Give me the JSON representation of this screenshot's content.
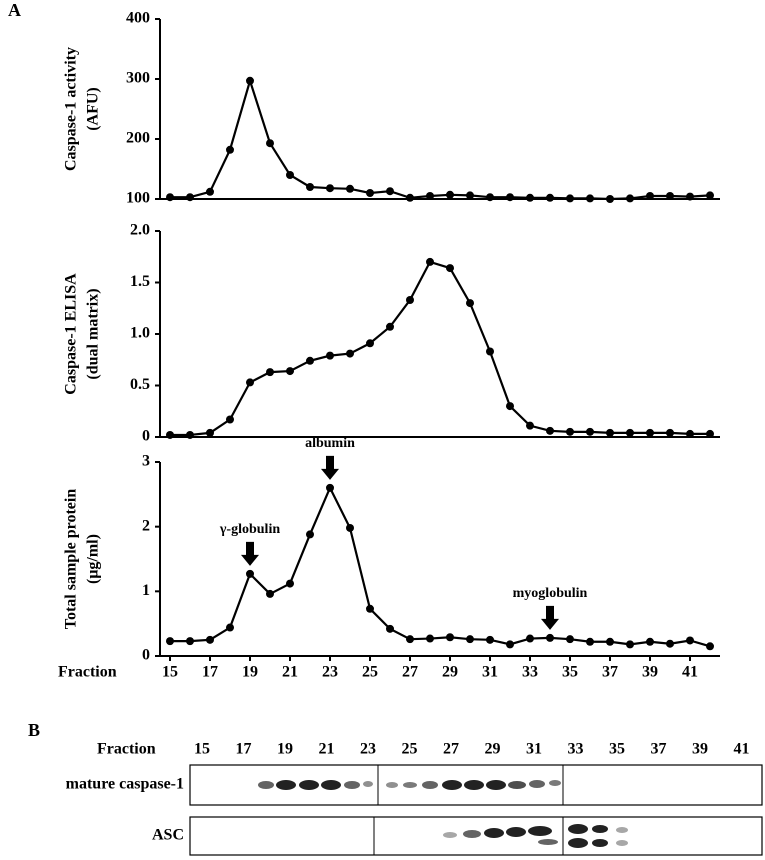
{
  "panel_labels": [
    "A",
    "B"
  ],
  "chart_data": [
    {
      "type": "line",
      "ylabel": [
        "Caspase-1 activity",
        "(AFU)"
      ],
      "color": "#000000",
      "x": [
        15,
        16,
        17,
        18,
        19,
        20,
        21,
        22,
        23,
        24,
        25,
        26,
        27,
        28,
        29,
        30,
        31,
        32,
        33,
        34,
        35,
        36,
        37,
        38,
        39,
        40,
        41,
        42
      ],
      "values": [
        103,
        103,
        112,
        182,
        297,
        193,
        140,
        120,
        118,
        117,
        110,
        113,
        102,
        105,
        107,
        106,
        103,
        103,
        102,
        102,
        101,
        101,
        100,
        101,
        105,
        105,
        104,
        106
      ],
      "xlim": [
        14.5,
        42.5
      ],
      "ylim": [
        100,
        400
      ],
      "yticks": [
        100,
        200,
        300,
        400
      ]
    },
    {
      "type": "line",
      "ylabel": [
        "Caspase-1 ELISA",
        "(dual matrix)"
      ],
      "color": "#000000",
      "x": [
        15,
        16,
        17,
        18,
        19,
        20,
        21,
        22,
        23,
        24,
        25,
        26,
        27,
        28,
        29,
        30,
        31,
        32,
        33,
        34,
        35,
        36,
        37,
        38,
        39,
        40,
        41,
        42
      ],
      "values": [
        0.02,
        0.02,
        0.04,
        0.17,
        0.53,
        0.63,
        0.64,
        0.74,
        0.79,
        0.81,
        0.91,
        1.07,
        1.33,
        1.7,
        1.64,
        1.3,
        0.83,
        0.3,
        0.11,
        0.06,
        0.05,
        0.05,
        0.04,
        0.04,
        0.04,
        0.04,
        0.03,
        0.03
      ],
      "xlim": [
        14.5,
        42.5
      ],
      "ylim": [
        0,
        2
      ],
      "yticks": [
        0,
        0.5,
        {
          "value": 1,
          "label": "1.0"
        },
        1.5,
        {
          "value": 2,
          "label": "2.0"
        }
      ]
    },
    {
      "type": "line",
      "ylabel": [
        "Total sample protein",
        "(μg/ml)"
      ],
      "xlabel": "Fraction",
      "color": "#000000",
      "x": [
        15,
        16,
        17,
        18,
        19,
        20,
        21,
        22,
        23,
        24,
        25,
        26,
        27,
        28,
        29,
        30,
        31,
        32,
        33,
        34,
        35,
        36,
        37,
        38,
        39,
        40,
        41,
        42
      ],
      "values": [
        0.23,
        0.23,
        0.25,
        0.44,
        1.27,
        0.96,
        1.12,
        1.88,
        2.6,
        1.98,
        0.73,
        0.42,
        0.26,
        0.27,
        0.29,
        0.26,
        0.25,
        0.18,
        0.27,
        0.28,
        0.26,
        0.22,
        0.22,
        0.18,
        0.22,
        0.19,
        0.24,
        0.15
      ],
      "xlim": [
        14.5,
        42.5
      ],
      "xticks": [
        15,
        17,
        19,
        21,
        23,
        25,
        27,
        29,
        31,
        33,
        35,
        37,
        39,
        41
      ],
      "ylim": [
        0,
        3
      ],
      "yticks": [
        0,
        1,
        2,
        3
      ],
      "annotations": [
        {
          "text": "γ-globulin",
          "x": 19
        },
        {
          "text": "albumin",
          "x": 23
        },
        {
          "text": "myoglobulin",
          "x": 34
        }
      ]
    }
  ],
  "blot": {
    "header": "Fraction",
    "fractions": [
      15,
      17,
      19,
      21,
      23,
      25,
      27,
      29,
      31,
      33,
      35,
      37,
      39,
      41
    ],
    "rows": [
      "mature caspase-1",
      "ASC"
    ]
  }
}
